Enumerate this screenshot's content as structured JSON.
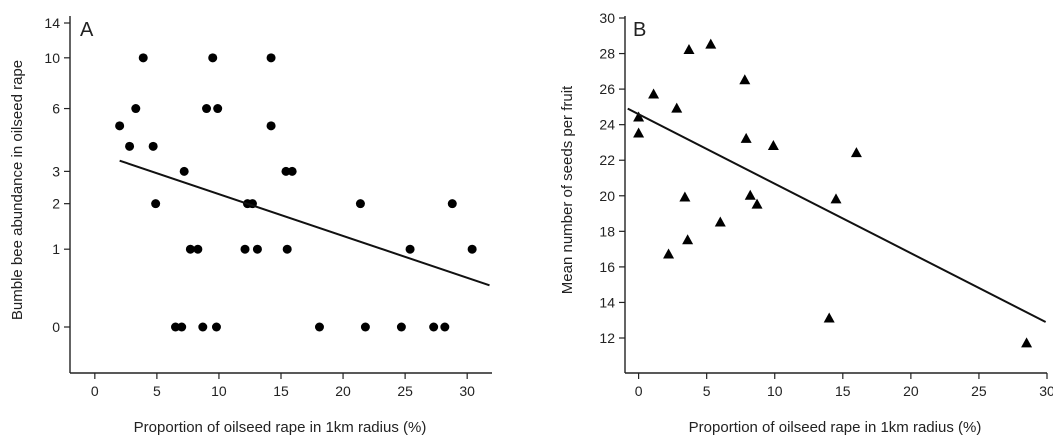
{
  "chart_data": [
    {
      "type": "scatter",
      "panel_label": "A",
      "xlabel": "Proportion of oilseed rape in 1km radius (%)",
      "ylabel": "Bumble bee abundance in oilseed rape",
      "xlim": [
        -2,
        32
      ],
      "xticks": [
        0,
        5,
        10,
        15,
        20,
        25,
        30
      ],
      "y_scale": "log(y+1)",
      "yticks": [
        0,
        1,
        2,
        3,
        6,
        10,
        14
      ],
      "marker": "circle",
      "grid": false,
      "points": [
        {
          "x": 2.0,
          "y": 5
        },
        {
          "x": 2.8,
          "y": 4
        },
        {
          "x": 3.3,
          "y": 6
        },
        {
          "x": 3.9,
          "y": 10
        },
        {
          "x": 4.7,
          "y": 4
        },
        {
          "x": 4.9,
          "y": 2
        },
        {
          "x": 6.5,
          "y": 0
        },
        {
          "x": 7.0,
          "y": 0
        },
        {
          "x": 7.2,
          "y": 3
        },
        {
          "x": 7.7,
          "y": 1
        },
        {
          "x": 8.3,
          "y": 1
        },
        {
          "x": 8.7,
          "y": 0
        },
        {
          "x": 9.0,
          "y": 6
        },
        {
          "x": 9.5,
          "y": 10
        },
        {
          "x": 9.9,
          "y": 6
        },
        {
          "x": 9.8,
          "y": 0
        },
        {
          "x": 12.1,
          "y": 1
        },
        {
          "x": 12.3,
          "y": 2
        },
        {
          "x": 12.7,
          "y": 2
        },
        {
          "x": 13.1,
          "y": 1
        },
        {
          "x": 14.2,
          "y": 10
        },
        {
          "x": 14.2,
          "y": 5
        },
        {
          "x": 15.4,
          "y": 3
        },
        {
          "x": 15.5,
          "y": 1
        },
        {
          "x": 15.9,
          "y": 3
        },
        {
          "x": 18.1,
          "y": 0
        },
        {
          "x": 21.4,
          "y": 2
        },
        {
          "x": 21.8,
          "y": 0
        },
        {
          "x": 24.7,
          "y": 0
        },
        {
          "x": 25.4,
          "y": 1
        },
        {
          "x": 27.3,
          "y": 0
        },
        {
          "x": 28.2,
          "y": 0
        },
        {
          "x": 28.8,
          "y": 2
        },
        {
          "x": 30.4,
          "y": 1
        }
      ],
      "trend_line": {
        "x": [
          2.0,
          31.8
        ],
        "y": [
          3.4,
          0.45
        ]
      }
    },
    {
      "type": "scatter",
      "panel_label": "B",
      "xlabel": "Proportion of oilseed rape in 1km radius (%)",
      "ylabel": "Mean number of seeds per fruit",
      "xlim": [
        -1,
        30
      ],
      "ylim": [
        10,
        30
      ],
      "xticks": [
        0,
        5,
        10,
        15,
        20,
        25,
        30
      ],
      "yticks": [
        12,
        14,
        16,
        18,
        20,
        22,
        24,
        26,
        28,
        30
      ],
      "marker": "triangle",
      "grid": false,
      "points": [
        {
          "x": 0.0,
          "y": 24.4
        },
        {
          "x": 0.0,
          "y": 23.5
        },
        {
          "x": 1.1,
          "y": 25.7
        },
        {
          "x": 2.2,
          "y": 16.7
        },
        {
          "x": 2.8,
          "y": 24.9
        },
        {
          "x": 3.4,
          "y": 19.9
        },
        {
          "x": 3.6,
          "y": 17.5
        },
        {
          "x": 3.7,
          "y": 28.2
        },
        {
          "x": 5.3,
          "y": 28.5
        },
        {
          "x": 6.0,
          "y": 18.5
        },
        {
          "x": 7.8,
          "y": 26.5
        },
        {
          "x": 7.9,
          "y": 23.2
        },
        {
          "x": 8.2,
          "y": 20.0
        },
        {
          "x": 8.7,
          "y": 19.5
        },
        {
          "x": 9.9,
          "y": 22.8
        },
        {
          "x": 14.0,
          "y": 13.1
        },
        {
          "x": 14.5,
          "y": 19.8
        },
        {
          "x": 16.0,
          "y": 22.4
        },
        {
          "x": 28.5,
          "y": 11.7
        }
      ],
      "trend_line": {
        "x": [
          -0.8,
          29.9
        ],
        "y": [
          24.9,
          12.9
        ]
      }
    }
  ]
}
